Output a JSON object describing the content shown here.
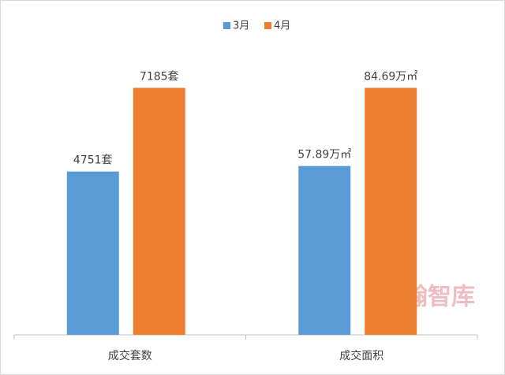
{
  "chart_data": {
    "type": "bar",
    "categories": [
      "成交套数",
      "成交面积"
    ],
    "series": [
      {
        "name": "3月",
        "color": "#5b9bd5",
        "values": [
          4751,
          57.89
        ],
        "value_labels": [
          "4751套",
          "57.89万㎡"
        ]
      },
      {
        "name": "4月",
        "color": "#ed7d31",
        "values": [
          7185,
          84.69
        ],
        "value_labels": [
          "7185套",
          "84.69万㎡"
        ]
      }
    ],
    "legend": "top",
    "watermark": "亿翰智库"
  }
}
